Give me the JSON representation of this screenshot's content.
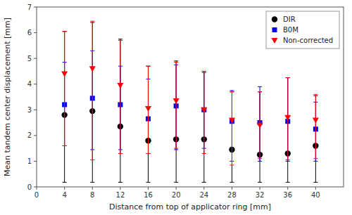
{
  "chart_data": {
    "type": "scatter",
    "xlabel": "Distance from top of applicator ring [mm]",
    "ylabel": "Mean tandem center displacement [mm]",
    "x": [
      4,
      8,
      12,
      16,
      20,
      24,
      28,
      32,
      36,
      40
    ],
    "series": [
      {
        "name": "DIR",
        "color": "#000000",
        "marker": "circle",
        "values": [
          2.8,
          2.95,
          2.35,
          1.8,
          1.85,
          1.85,
          1.45,
          1.25,
          1.3,
          1.6
        ],
        "upper": [
          6.05,
          6.4,
          5.75,
          4.7,
          4.9,
          4.5,
          3.7,
          3.7,
          4.25,
          3.55
        ],
        "lower": [
          0.18,
          0.18,
          0.18,
          0.18,
          0.18,
          0.18,
          0.18,
          0.18,
          0.18,
          0.18
        ]
      },
      {
        "name": "B0M",
        "color": "#0000FF",
        "marker": "square",
        "values": [
          3.2,
          3.45,
          3.2,
          2.65,
          3.15,
          3.0,
          2.55,
          2.5,
          2.55,
          2.25
        ],
        "upper": [
          4.85,
          5.3,
          4.7,
          4.2,
          4.75,
          4.45,
          3.75,
          3.9,
          4.25,
          3.3
        ],
        "lower": [
          1.6,
          1.45,
          1.45,
          1.3,
          1.45,
          1.5,
          1.0,
          1.0,
          1.0,
          1.0
        ]
      },
      {
        "name": "Non-corrected",
        "color": "#FF0000",
        "marker": "triangle-down",
        "values": [
          4.4,
          4.6,
          3.95,
          3.05,
          3.35,
          3.0,
          2.6,
          2.4,
          2.7,
          2.6
        ],
        "upper": [
          6.05,
          6.45,
          5.7,
          4.7,
          4.85,
          4.5,
          3.7,
          3.7,
          4.25,
          3.6
        ],
        "lower": [
          1.6,
          1.05,
          1.3,
          1.3,
          1.5,
          1.3,
          0.85,
          1.1,
          1.05,
          1.1
        ]
      }
    ],
    "xlim": [
      0,
      44
    ],
    "ylim": [
      0,
      7
    ],
    "xticks": [
      0,
      4,
      8,
      12,
      16,
      20,
      24,
      28,
      32,
      36,
      40
    ],
    "yticks": [
      0,
      1,
      2,
      3,
      4,
      5,
      6,
      7
    ],
    "grid": false,
    "legend": "upper right"
  }
}
